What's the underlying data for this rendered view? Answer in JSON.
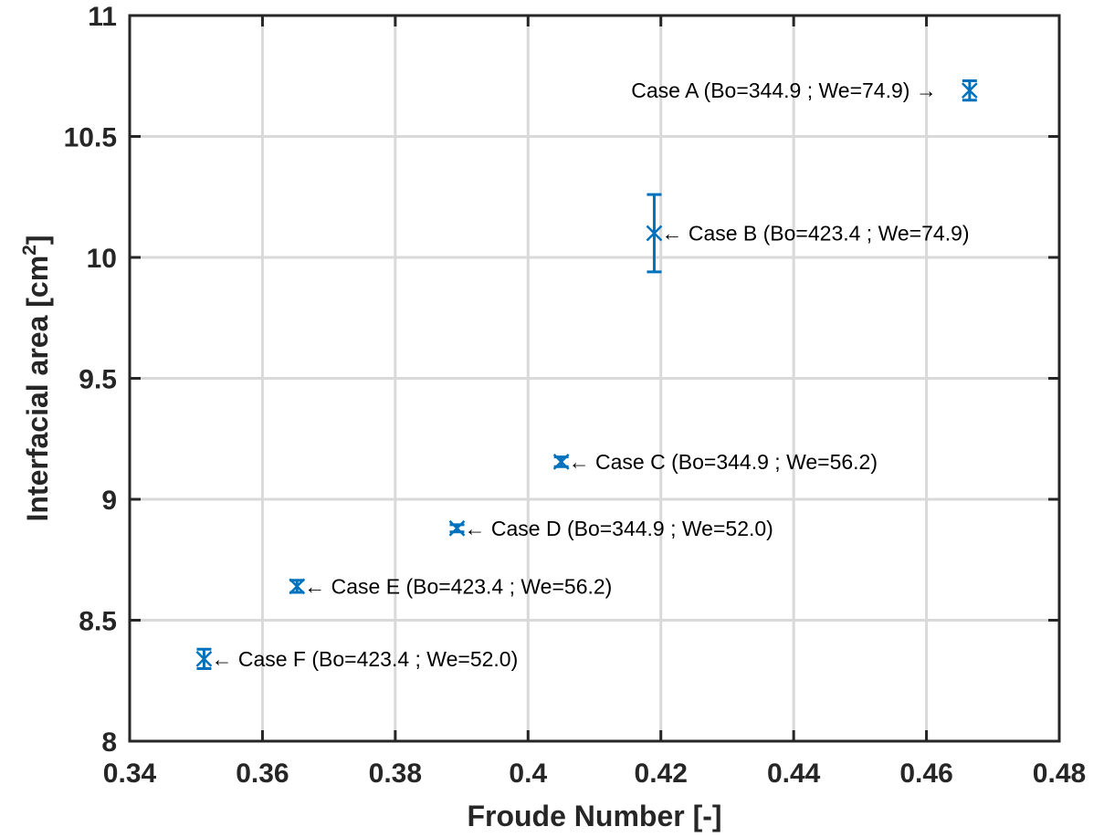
{
  "chart_data": {
    "type": "scatter",
    "xlabel": "Froude Number [-]",
    "ylabel": "Interfacial area [cm",
    "ylabel_sup": "2",
    "ylabel_end": "]",
    "xlim": [
      0.34,
      0.48
    ],
    "ylim": [
      8,
      11
    ],
    "xticks": [
      0.34,
      0.36,
      0.38,
      0.4,
      0.42,
      0.44,
      0.46,
      0.48
    ],
    "xtick_labels": [
      "0.34",
      "0.36",
      "0.38",
      "0.4",
      "0.42",
      "0.44",
      "0.46",
      "0.48"
    ],
    "yticks": [
      8,
      8.5,
      9,
      9.5,
      10,
      10.5,
      11
    ],
    "ytick_labels": [
      "8",
      "8.5",
      "9",
      "9.5",
      "10",
      "10.5",
      "11"
    ],
    "grid": true,
    "marker": "x",
    "color": "#0072BD",
    "points": [
      {
        "x": 0.4665,
        "y": 10.69,
        "err": 0.04,
        "label": "Case A (Bo=344.9 ; We=74.9) →",
        "label_side": "left"
      },
      {
        "x": 0.419,
        "y": 10.1,
        "err": 0.16,
        "label": "← Case B (Bo=423.4 ; We=74.9)",
        "label_side": "right"
      },
      {
        "x": 0.405,
        "y": 9.155,
        "err": 0.02,
        "label": "← Case C (Bo=344.9 ; We=56.2)",
        "label_side": "right"
      },
      {
        "x": 0.3893,
        "y": 8.88,
        "err": 0.015,
        "label": "← Case D (Bo=344.9 ; We=52.0)",
        "label_side": "right"
      },
      {
        "x": 0.3652,
        "y": 8.64,
        "err": 0.025,
        "label": "← Case E (Bo=423.4 ; We=56.2)",
        "label_side": "right"
      },
      {
        "x": 0.3512,
        "y": 8.34,
        "err": 0.04,
        "label": "← Case F (Bo=423.4 ; We=52.0)",
        "label_side": "right"
      }
    ]
  }
}
